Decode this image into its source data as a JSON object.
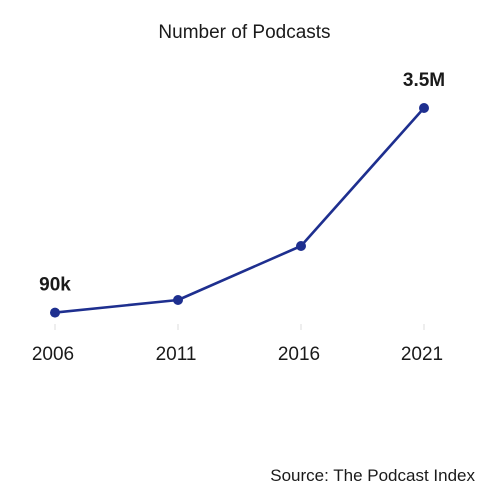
{
  "title": "Number of Podcasts",
  "source": "Source: The Podcast Index",
  "colors": {
    "line": "#1e2f8f",
    "text": "#1a1a1a",
    "tick_mark": "#dddddd"
  },
  "chart_data": {
    "type": "line",
    "title": "Number of Podcasts",
    "xlabel": "",
    "ylabel": "",
    "categories": [
      "2006",
      "2011",
      "2016",
      "2021"
    ],
    "values": [
      90000,
      300000,
      1200000,
      3500000
    ],
    "data_labels": [
      {
        "index": 0,
        "text": "90k"
      },
      {
        "index": 3,
        "text": "3.5M"
      }
    ],
    "ylim": [
      0,
      3500000
    ],
    "grid": false,
    "legend": "none"
  }
}
